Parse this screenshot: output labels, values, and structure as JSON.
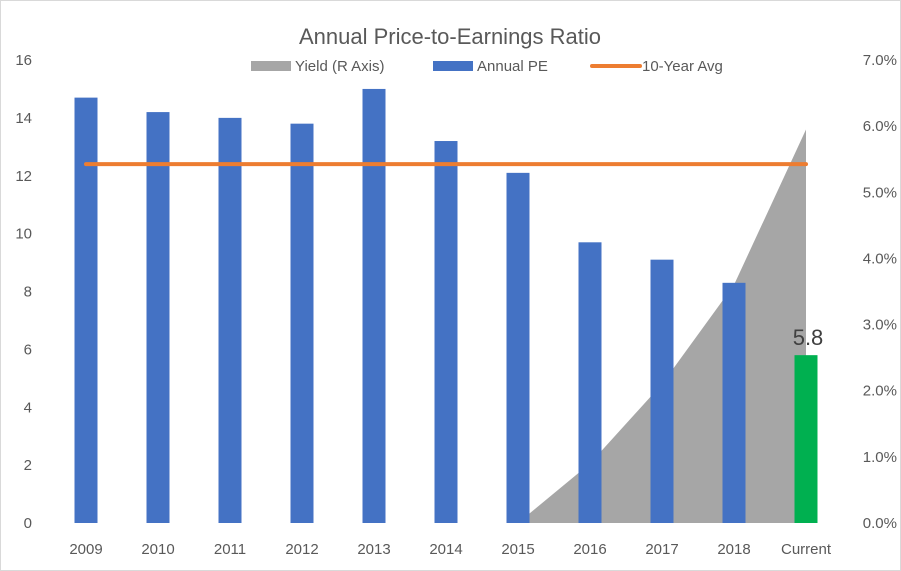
{
  "chart_data": {
    "type": "bar",
    "title": "Annual Price-to-Earnings Ratio",
    "categories": [
      "2009",
      "2010",
      "2011",
      "2012",
      "2013",
      "2014",
      "2015",
      "2016",
      "2017",
      "2018",
      "Current"
    ],
    "ylim": [
      0,
      16
    ],
    "y_ticks": [
      "0",
      "2",
      "4",
      "6",
      "8",
      "10",
      "12",
      "14",
      "16"
    ],
    "y2lim": [
      0,
      7
    ],
    "y2_ticks": [
      "0.0%",
      "1.0%",
      "2.0%",
      "3.0%",
      "4.0%",
      "5.0%",
      "6.0%",
      "7.0%"
    ],
    "series": [
      {
        "name": "Yield (R Axis)",
        "type": "area",
        "axis": "right",
        "color": "#a6a6a6",
        "values": [
          null,
          null,
          null,
          null,
          null,
          null,
          0.0,
          0.9,
          2.1,
          3.6,
          5.95
        ]
      },
      {
        "name": "Annual PE",
        "type": "bar",
        "axis": "left",
        "color": "#4472c4",
        "values": [
          14.7,
          14.2,
          14.0,
          13.8,
          15.0,
          13.2,
          12.1,
          9.7,
          9.1,
          8.3,
          5.8
        ]
      },
      {
        "name": "10-Year Avg",
        "type": "line",
        "axis": "left",
        "color": "#ed7d31",
        "values": [
          12.4,
          12.4,
          12.4,
          12.4,
          12.4,
          12.4,
          12.4,
          12.4,
          12.4,
          12.4,
          12.4
        ]
      }
    ],
    "highlight": {
      "category": "Current",
      "color": "#00b050",
      "label": "5.8"
    },
    "legend_position": "top",
    "grid": false
  }
}
